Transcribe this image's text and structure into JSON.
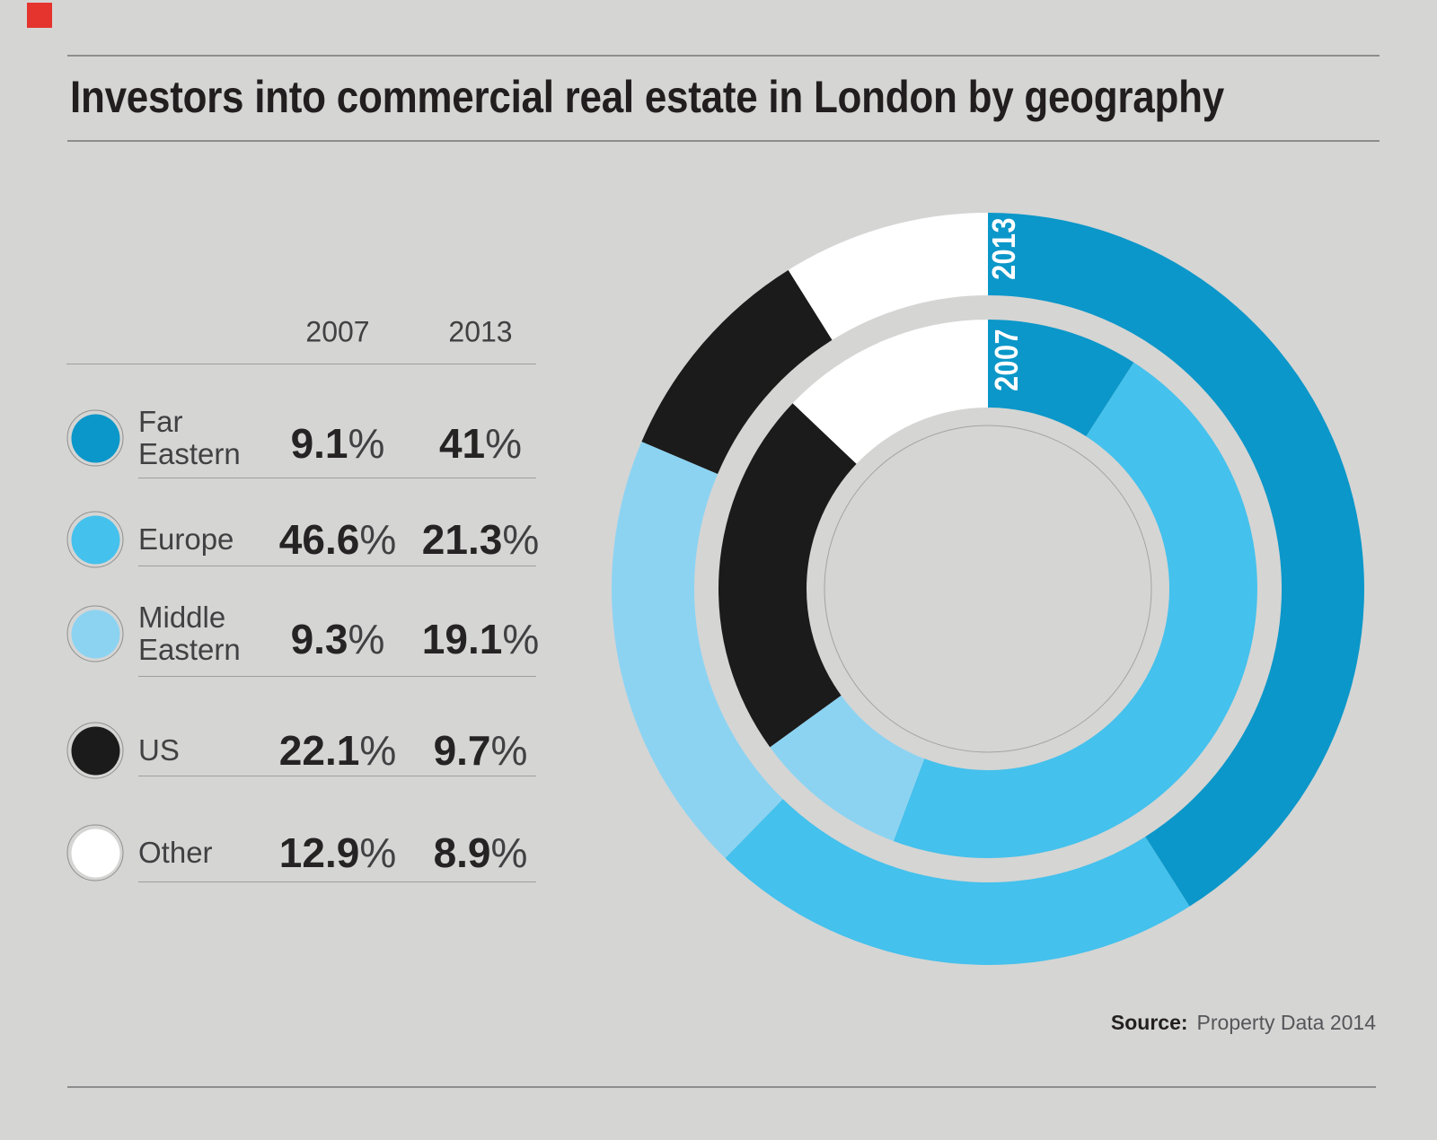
{
  "page": {
    "background": "#d5d5d4",
    "brand_mark_color": "#e5332d"
  },
  "title": "Investors into commercial real estate in London by geography",
  "legend": {
    "pct": "%",
    "columns": [
      "2007",
      "2013"
    ],
    "rows": [
      {
        "label": "Far Eastern",
        "lines": [
          "Far",
          "Eastern"
        ],
        "color": "#0b97c9",
        "value_2007": "9.1",
        "value_2013": "41"
      },
      {
        "label": "Europe",
        "lines": [
          "Europe"
        ],
        "color": "#44c1ec",
        "value_2007": "46.6",
        "value_2013": "21.3"
      },
      {
        "label": "Middle Eastern",
        "lines": [
          "Middle",
          "Eastern"
        ],
        "color": "#8cd3f2",
        "value_2007": "9.3",
        "value_2013": "19.1"
      },
      {
        "label": "US",
        "lines": [
          "US"
        ],
        "color": "#1b1b1b",
        "value_2007": "22.1",
        "value_2013": "9.7"
      },
      {
        "label": "Other",
        "lines": [
          "Other"
        ],
        "color": "#ffffff",
        "value_2007": "12.9",
        "value_2013": "8.9"
      }
    ]
  },
  "source": {
    "label": "Source:",
    "text": "Property Data 2014"
  },
  "chart_data": {
    "type": "donut",
    "title": "Investors into commercial real estate in London by geography",
    "categories": [
      "Far Eastern",
      "Europe",
      "Middle Eastern",
      "US",
      "Other"
    ],
    "colors": [
      "#0b97c9",
      "#44c1ec",
      "#8cd3f2",
      "#1b1b1b",
      "#ffffff"
    ],
    "unit": "%",
    "start_angle_deg": 0,
    "direction": "clockwise",
    "rings": [
      {
        "label": "2013",
        "position": "outer",
        "values": [
          41,
          21.3,
          19.1,
          9.7,
          8.9
        ]
      },
      {
        "label": "2007",
        "position": "inner",
        "values": [
          9.1,
          46.6,
          9.3,
          22.1,
          12.9
        ]
      }
    ],
    "source": "Property Data 2014"
  }
}
